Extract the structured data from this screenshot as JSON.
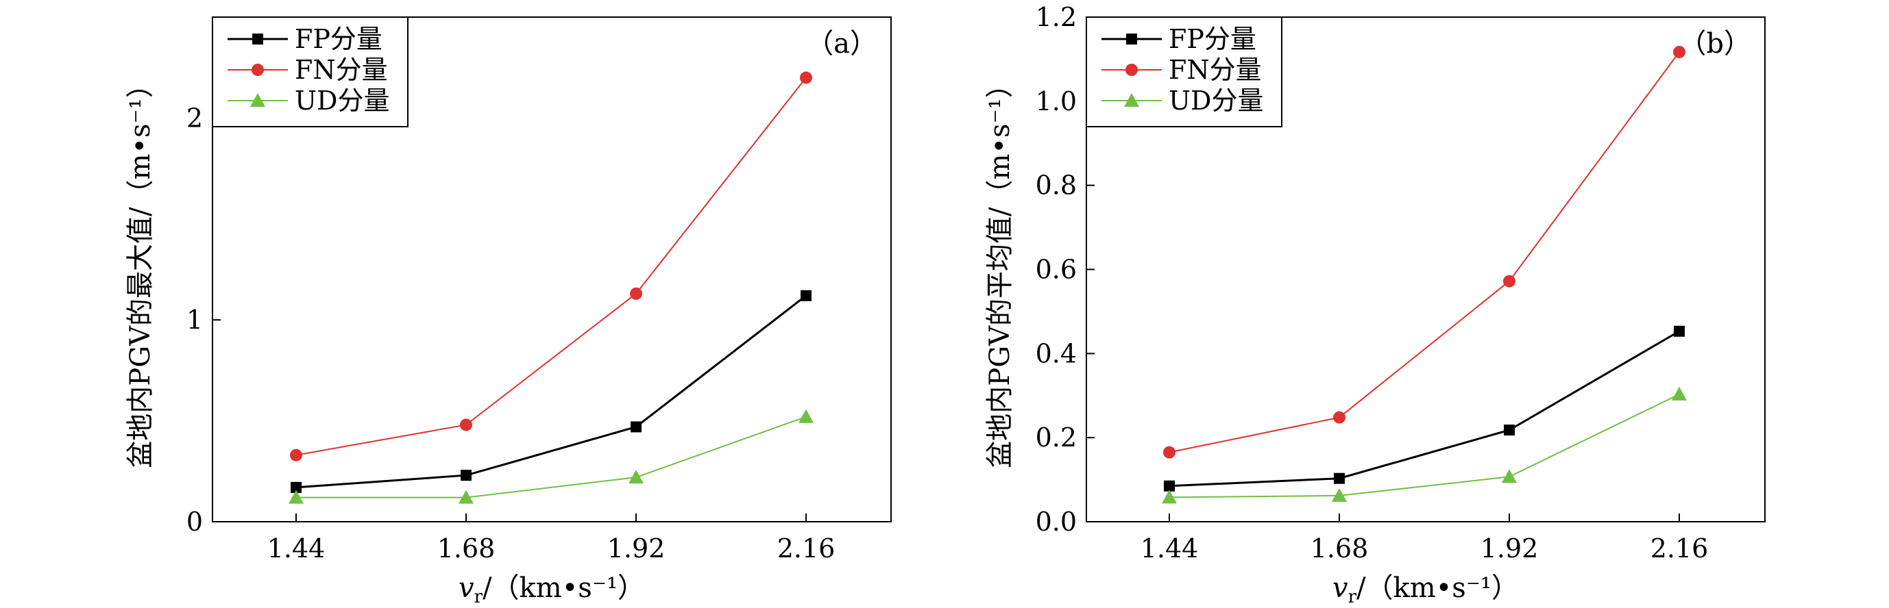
{
  "figure": {
    "panels": [
      "a",
      "b"
    ]
  },
  "chart_data": [
    {
      "type": "line",
      "panel_label": "（a）",
      "title": "",
      "ylabel": "盆地内PGV的最大值/（m•s⁻¹）",
      "xlabel_var": "v",
      "xlabel_sub": "r",
      "xlabel_units": "/（km•s⁻¹）",
      "categories": [
        "1.44",
        "1.68",
        "1.92",
        "2.16"
      ],
      "ylim": [
        0,
        2.5
      ],
      "yticks": [
        0,
        1,
        2
      ],
      "ytick_labels": [
        "0",
        "1",
        "2"
      ],
      "legend_position": "top-left",
      "series": [
        {
          "name": "FP分量",
          "color": "#000000",
          "marker": "square",
          "values": [
            0.17,
            0.23,
            0.47,
            1.12
          ]
        },
        {
          "name": "FN分量",
          "color": "#e03030",
          "marker": "circle",
          "values": [
            0.33,
            0.48,
            1.13,
            2.2
          ]
        },
        {
          "name": "UD分量",
          "color": "#6fc040",
          "marker": "triangle",
          "values": [
            0.12,
            0.12,
            0.22,
            0.52
          ]
        }
      ]
    },
    {
      "type": "line",
      "panel_label": "（b）",
      "title": "",
      "ylabel": "盆地内PGV的平均值/（m•s⁻¹）",
      "xlabel_var": "v",
      "xlabel_sub": "r",
      "xlabel_units": "/（km•s⁻¹）",
      "categories": [
        "1.44",
        "1.68",
        "1.92",
        "2.16"
      ],
      "ylim": [
        0,
        1.2
      ],
      "yticks": [
        0,
        0.2,
        0.4,
        0.6,
        0.8,
        1.0,
        1.2
      ],
      "ytick_labels": [
        "0.0",
        "0.2",
        "0.4",
        "0.6",
        "0.8",
        "1.0",
        "1.2"
      ],
      "legend_position": "top-left",
      "series": [
        {
          "name": "FP分量",
          "color": "#000000",
          "marker": "square",
          "values": [
            0.085,
            0.103,
            0.218,
            0.453
          ]
        },
        {
          "name": "FN分量",
          "color": "#e03030",
          "marker": "circle",
          "values": [
            0.165,
            0.248,
            0.572,
            1.117
          ]
        },
        {
          "name": "UD分量",
          "color": "#6fc040",
          "marker": "triangle",
          "values": [
            0.058,
            0.062,
            0.107,
            0.303
          ]
        }
      ]
    }
  ]
}
